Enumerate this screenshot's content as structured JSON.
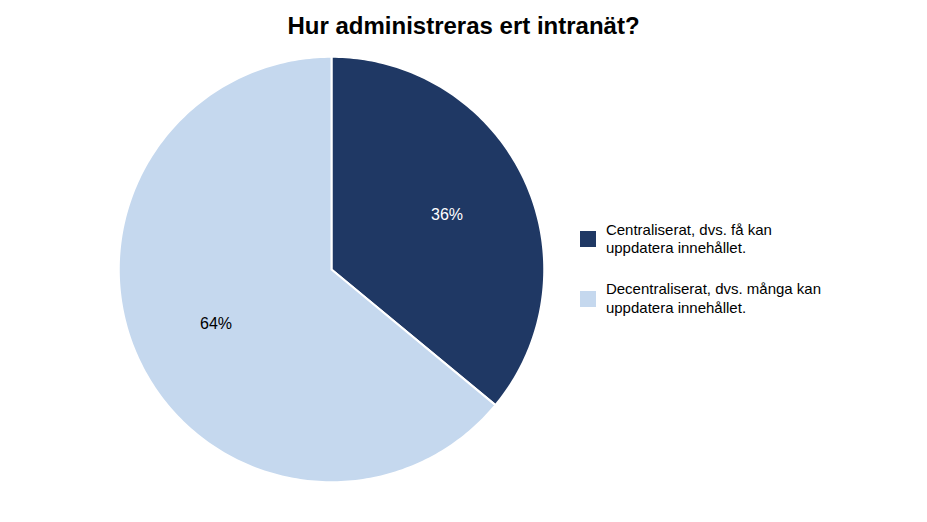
{
  "chart_data": {
    "type": "pie",
    "title": "Hur administreras ert intranät?",
    "categories": [
      "Centraliserat, dvs. få kan\nuppdatera innehållet.",
      "Decentraliserat, dvs. många kan\nuppdatera innehållet."
    ],
    "values": [
      36,
      64
    ],
    "value_labels": [
      "36%",
      "64%"
    ],
    "colors": [
      "#1F3864",
      "#C5D8EE"
    ],
    "data_labels": true,
    "legend": "right"
  }
}
